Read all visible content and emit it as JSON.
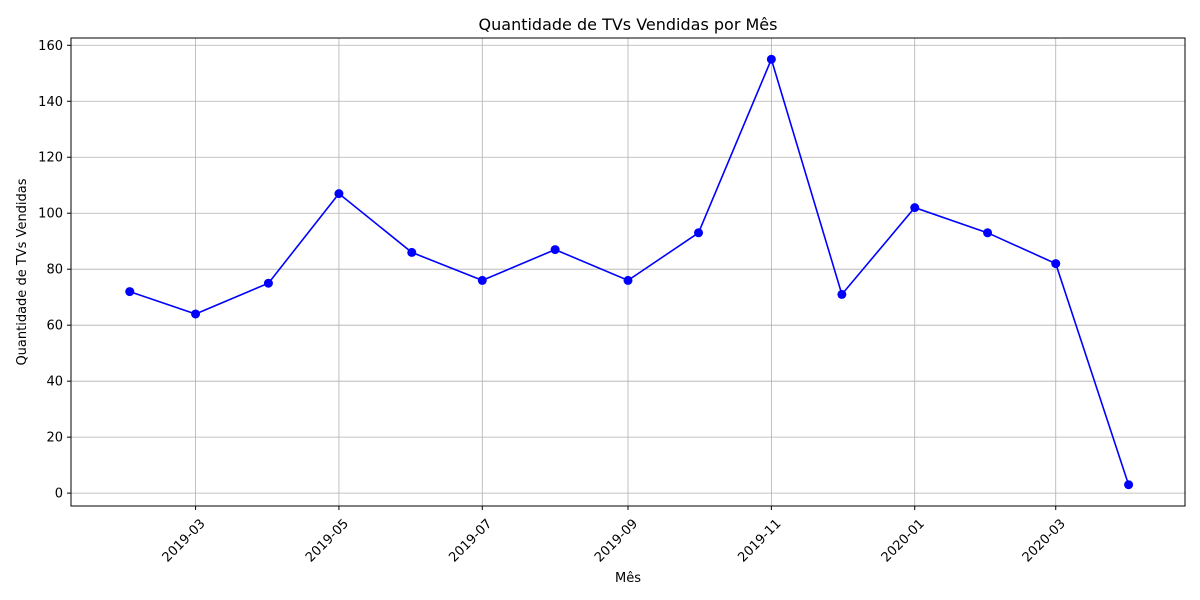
{
  "chart_data": {
    "type": "line",
    "title": "Quantidade de TVs Vendidas por Mês",
    "xlabel": "Mês",
    "ylabel": "Quantidade de TVs Vendidas",
    "x": [
      "2019-02-01",
      "2019-03-01",
      "2019-04-01",
      "2019-05-01",
      "2019-06-01",
      "2019-07-01",
      "2019-08-01",
      "2019-09-01",
      "2019-10-01",
      "2019-11-01",
      "2019-12-01",
      "2020-01-01",
      "2020-02-01",
      "2020-03-01",
      "2020-04-01"
    ],
    "series": [
      {
        "values": [
          72,
          64,
          75,
          107,
          86,
          76,
          87,
          76,
          93,
          155,
          71,
          102,
          93,
          82,
          3
        ]
      }
    ],
    "xlim": [
      "2019-01-07",
      "2020-04-25"
    ],
    "ylim": [
      -4.6,
      162.6
    ],
    "xticks": [
      "2019-03-01",
      "2019-05-01",
      "2019-07-01",
      "2019-09-01",
      "2019-11-01",
      "2020-01-01",
      "2020-03-01"
    ],
    "xtick_labels": [
      "2019-03",
      "2019-05",
      "2019-07",
      "2019-09",
      "2019-11",
      "2020-01",
      "2020-03"
    ],
    "yticks": [
      0,
      20,
      40,
      60,
      80,
      100,
      120,
      140,
      160
    ],
    "grid": true,
    "line_color": "#0000ff",
    "marker": "circle"
  }
}
